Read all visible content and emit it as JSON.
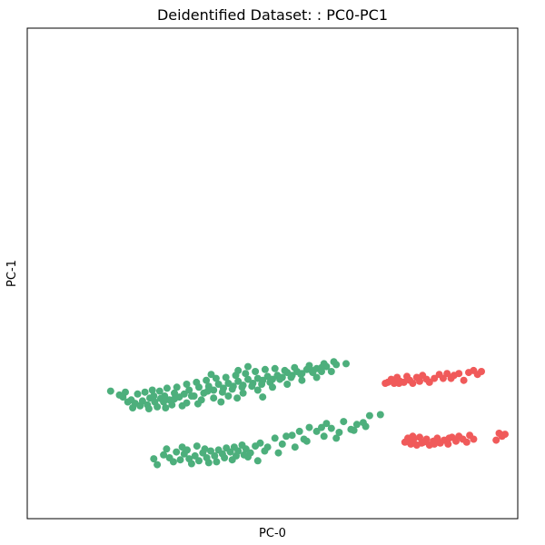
{
  "chart_data": {
    "type": "scatter",
    "title": "Deidentified Dataset: : PC0-PC1",
    "xlabel": "PC-0",
    "ylabel": "PC-1",
    "xlim": [
      0,
      100
    ],
    "ylim": [
      0,
      100
    ],
    "grid": false,
    "ticks": false,
    "colors": {
      "green": "#4daf7c",
      "red": "#f05a5a"
    },
    "series": [
      {
        "color": "green",
        "points": [
          [
            17.0,
            26.0
          ],
          [
            18.8,
            25.2
          ],
          [
            19.5,
            24.8
          ],
          [
            20.5,
            23.8
          ],
          [
            21.2,
            24.2
          ],
          [
            22.0,
            23.5
          ],
          [
            23.5,
            24.0
          ],
          [
            24.5,
            23.2
          ],
          [
            25.0,
            24.6
          ],
          [
            26.0,
            23.8
          ],
          [
            27.2,
            24.5
          ],
          [
            28.0,
            25.0
          ],
          [
            29.0,
            24.2
          ],
          [
            30.0,
            25.6
          ],
          [
            31.0,
            24.8
          ],
          [
            32.0,
            25.4
          ],
          [
            33.0,
            26.2
          ],
          [
            34.0,
            25.0
          ],
          [
            35.0,
            26.8
          ],
          [
            36.0,
            25.6
          ],
          [
            37.0,
            27.0
          ],
          [
            38.0,
            26.2
          ],
          [
            39.0,
            27.4
          ],
          [
            40.0,
            26.6
          ],
          [
            41.0,
            27.6
          ],
          [
            42.0,
            27.0
          ],
          [
            43.0,
            28.0
          ],
          [
            44.0,
            27.2
          ],
          [
            45.0,
            28.4
          ],
          [
            46.0,
            27.6
          ],
          [
            47.0,
            28.6
          ],
          [
            48.0,
            28.2
          ],
          [
            49.0,
            29.0
          ],
          [
            50.0,
            28.4
          ],
          [
            51.0,
            29.2
          ],
          [
            52.0,
            28.8
          ],
          [
            53.0,
            29.8
          ],
          [
            54.0,
            29.2
          ],
          [
            55.0,
            30.0
          ],
          [
            56.0,
            29.6
          ],
          [
            57.0,
            30.4
          ],
          [
            58.0,
            30.2
          ],
          [
            59.0,
            30.6
          ],
          [
            60.0,
            30.8
          ],
          [
            61.0,
            31.0
          ],
          [
            63.0,
            31.4
          ],
          [
            65.0,
            31.6
          ],
          [
            20.0,
            25.8
          ],
          [
            22.5,
            25.4
          ],
          [
            24.0,
            25.8
          ],
          [
            25.5,
            26.2
          ],
          [
            27.0,
            26.0
          ],
          [
            28.5,
            26.6
          ],
          [
            30.5,
            26.8
          ],
          [
            32.5,
            27.4
          ],
          [
            34.5,
            27.8
          ],
          [
            36.5,
            28.2
          ],
          [
            38.5,
            28.6
          ],
          [
            40.5,
            28.8
          ],
          [
            42.5,
            29.2
          ],
          [
            44.5,
            29.6
          ],
          [
            46.5,
            30.0
          ],
          [
            48.5,
            30.4
          ],
          [
            50.5,
            30.6
          ],
          [
            52.5,
            30.2
          ],
          [
            23.0,
            23.0
          ],
          [
            26.5,
            22.8
          ],
          [
            29.5,
            23.2
          ],
          [
            32.5,
            23.6
          ],
          [
            35.5,
            24.2
          ],
          [
            38.0,
            24.6
          ],
          [
            41.0,
            25.0
          ],
          [
            44.0,
            25.6
          ],
          [
            47.0,
            26.2
          ],
          [
            50.0,
            26.8
          ],
          [
            53.0,
            27.4
          ],
          [
            56.0,
            28.2
          ],
          [
            59.0,
            28.8
          ],
          [
            62.0,
            30.0
          ],
          [
            48.0,
            24.8
          ],
          [
            45.0,
            31.0
          ],
          [
            43.0,
            30.2
          ],
          [
            37.5,
            29.4
          ],
          [
            21.5,
            22.6
          ],
          [
            24.8,
            22.4
          ],
          [
            28.2,
            22.6
          ],
          [
            31.6,
            23.0
          ],
          [
            34.8,
            23.4
          ],
          [
            39.5,
            23.8
          ],
          [
            42.8,
            24.6
          ],
          [
            54.5,
            30.8
          ],
          [
            57.5,
            31.2
          ],
          [
            60.5,
            31.6
          ],
          [
            62.5,
            32.0
          ],
          [
            25.8,
            25.0
          ],
          [
            27.8,
            23.8
          ],
          [
            30.0,
            24.4
          ],
          [
            33.5,
            25.0
          ],
          [
            36.8,
            26.0
          ],
          [
            39.8,
            25.8
          ],
          [
            41.8,
            26.4
          ],
          [
            43.8,
            26.8
          ],
          [
            45.8,
            27.0
          ],
          [
            47.8,
            27.4
          ],
          [
            49.5,
            27.8
          ],
          [
            51.5,
            28.4
          ],
          [
            53.8,
            28.8
          ],
          [
            55.8,
            29.4
          ],
          [
            58.2,
            29.8
          ],
          [
            60.0,
            30.0
          ],
          [
            27.8,
            13.0
          ],
          [
            29.0,
            12.4
          ],
          [
            29.8,
            11.6
          ],
          [
            30.4,
            13.6
          ],
          [
            31.2,
            12.0
          ],
          [
            32.0,
            13.2
          ],
          [
            33.0,
            12.2
          ],
          [
            33.5,
            11.2
          ],
          [
            34.2,
            12.8
          ],
          [
            35.0,
            11.8
          ],
          [
            35.8,
            13.4
          ],
          [
            36.6,
            12.4
          ],
          [
            37.4,
            13.8
          ],
          [
            38.2,
            12.8
          ],
          [
            39.0,
            14.0
          ],
          [
            39.8,
            13.2
          ],
          [
            40.6,
            14.4
          ],
          [
            41.4,
            13.6
          ],
          [
            42.2,
            14.6
          ],
          [
            43.0,
            13.8
          ],
          [
            43.8,
            15.0
          ],
          [
            44.6,
            14.2
          ],
          [
            45.5,
            13.4
          ],
          [
            46.5,
            14.8
          ],
          [
            47.5,
            15.4
          ],
          [
            49.0,
            14.6
          ],
          [
            50.5,
            16.4
          ],
          [
            52.0,
            15.2
          ],
          [
            54.0,
            17.0
          ],
          [
            55.5,
            17.8
          ],
          [
            57.5,
            18.6
          ],
          [
            59.0,
            17.8
          ],
          [
            61.0,
            19.4
          ],
          [
            62.0,
            18.4
          ],
          [
            64.5,
            19.8
          ],
          [
            66.0,
            18.2
          ],
          [
            68.5,
            19.6
          ],
          [
            69.8,
            21.0
          ],
          [
            72.0,
            21.2
          ],
          [
            26.5,
            11.0
          ],
          [
            28.4,
            14.2
          ],
          [
            31.6,
            14.6
          ],
          [
            34.6,
            14.8
          ],
          [
            37.0,
            11.4
          ],
          [
            40.2,
            12.4
          ],
          [
            42.6,
            12.8
          ],
          [
            45.0,
            12.6
          ],
          [
            47.0,
            11.8
          ],
          [
            51.2,
            13.4
          ],
          [
            54.6,
            14.6
          ],
          [
            57.0,
            15.8
          ],
          [
            60.5,
            16.8
          ],
          [
            63.0,
            16.4
          ],
          [
            66.6,
            18.0
          ],
          [
            69.0,
            18.8
          ],
          [
            25.8,
            12.2
          ],
          [
            32.6,
            14.0
          ],
          [
            36.2,
            14.2
          ],
          [
            38.6,
            11.6
          ],
          [
            41.8,
            12.0
          ],
          [
            44.2,
            13.0
          ],
          [
            48.4,
            13.8
          ],
          [
            52.8,
            16.8
          ],
          [
            56.4,
            16.2
          ],
          [
            60.0,
            18.6
          ],
          [
            63.6,
            17.6
          ],
          [
            67.2,
            19.2
          ]
        ]
      },
      {
        "color": "red",
        "points": [
          [
            73.5,
            27.8
          ],
          [
            74.2,
            28.4
          ],
          [
            74.8,
            27.6
          ],
          [
            75.4,
            28.8
          ],
          [
            76.0,
            28.0
          ],
          [
            76.8,
            27.8
          ],
          [
            77.4,
            29.0
          ],
          [
            78.0,
            28.2
          ],
          [
            78.6,
            27.6
          ],
          [
            79.4,
            28.8
          ],
          [
            80.0,
            28.0
          ],
          [
            80.6,
            29.2
          ],
          [
            81.4,
            28.4
          ],
          [
            82.0,
            27.8
          ],
          [
            83.0,
            28.6
          ],
          [
            84.0,
            29.4
          ],
          [
            84.8,
            28.6
          ],
          [
            85.6,
            29.6
          ],
          [
            86.4,
            28.6
          ],
          [
            87.0,
            29.2
          ],
          [
            88.0,
            29.6
          ],
          [
            89.0,
            28.2
          ],
          [
            90.0,
            29.8
          ],
          [
            91.0,
            30.2
          ],
          [
            91.8,
            29.4
          ],
          [
            92.6,
            30.0
          ],
          [
            73.0,
            27.6
          ],
          [
            75.8,
            27.6
          ],
          [
            77.0,
            15.6
          ],
          [
            77.6,
            16.4
          ],
          [
            78.2,
            15.2
          ],
          [
            78.8,
            16.2
          ],
          [
            79.4,
            15.0
          ],
          [
            80.0,
            16.6
          ],
          [
            80.8,
            15.6
          ],
          [
            81.4,
            16.2
          ],
          [
            82.0,
            15.0
          ],
          [
            82.8,
            15.8
          ],
          [
            83.6,
            16.4
          ],
          [
            84.2,
            15.4
          ],
          [
            85.0,
            16.0
          ],
          [
            85.8,
            15.2
          ],
          [
            86.6,
            16.6
          ],
          [
            87.4,
            15.8
          ],
          [
            88.0,
            16.8
          ],
          [
            88.8,
            16.2
          ],
          [
            89.6,
            15.6
          ],
          [
            90.2,
            17.0
          ],
          [
            91.0,
            16.2
          ],
          [
            95.6,
            16.0
          ],
          [
            96.2,
            17.4
          ],
          [
            96.8,
            16.8
          ],
          [
            97.4,
            17.2
          ],
          [
            78.6,
            16.8
          ],
          [
            80.4,
            15.4
          ],
          [
            83.0,
            15.2
          ],
          [
            86.0,
            16.4
          ]
        ]
      }
    ]
  }
}
